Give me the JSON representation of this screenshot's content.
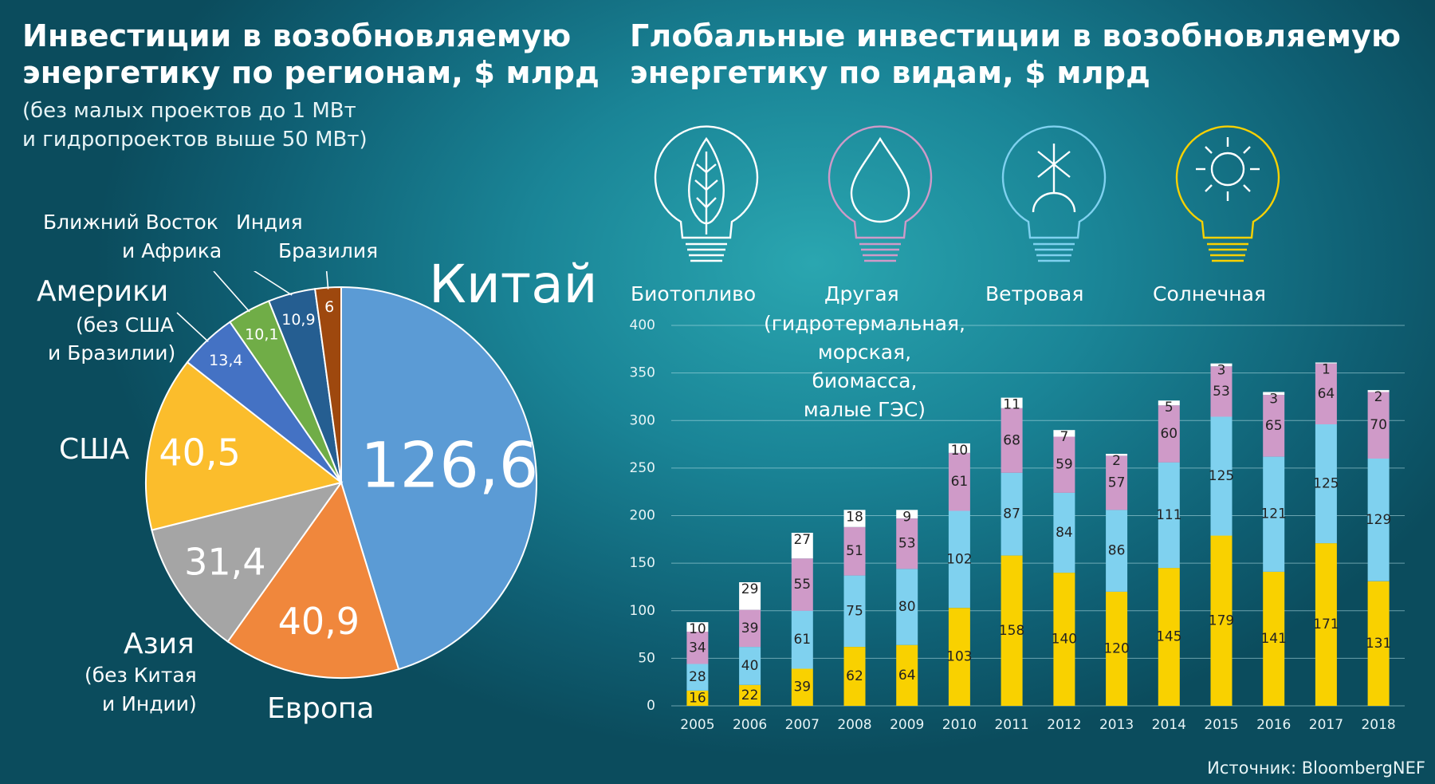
{
  "left": {
    "title": "Инвестиции в возобновляемую энергетику по регионам, $ млрд",
    "subtitle_line1": "(без малых проектов до 1 МВт",
    "subtitle_line2": "и гидропроектов выше 50 МВт)"
  },
  "right": {
    "title_line1": "Глобальные инвестиции в возобновляемую",
    "title_line2": "энергетику по видам, $ млрд"
  },
  "left_title_line1": "Инвестиции в возобновляемую",
  "left_title_line2": "энергетику по регионам, $ млрд",
  "region_labels": {
    "china": "Китай",
    "europe": "Европа",
    "asia": "Азия",
    "asia_note1": "(без Китая",
    "asia_note2": "и Индии)",
    "usa": "США",
    "americas": "Америки",
    "americas_note1": "(без США",
    "americas_note2": "и Бразилии)",
    "mea1": "Ближний Восток",
    "mea2": "и Африка",
    "india": "Индия",
    "brazil": "Бразилия"
  },
  "icons": {
    "bio": "Биотопливо",
    "other": "Другая",
    "other_note1": "(гидротермальная,",
    "other_note2": "морская,",
    "other_note3": "биомасса,",
    "other_note4": "малые ГЭС)",
    "wind": "Ветровая",
    "solar": "Солнечная"
  },
  "colors": {
    "solar": "#f9d100",
    "wind": "#7fd1ef",
    "other": "#cf9ac8",
    "bio": "#ffffff"
  },
  "source": "Источник: BloombergNEF",
  "chart_data": [
    {
      "type": "pie",
      "title": "Инвестиции в возобновляемую энергетику по регионам, $ млрд",
      "subtitle": "(без малых проектов до 1 МВт и гидропроектов выше 50 МВт)",
      "slices": [
        {
          "name": "Китай",
          "value": 126.6,
          "label": "126,6",
          "color": "#5b9bd5"
        },
        {
          "name": "Европа",
          "value": 40.9,
          "label": "40,9",
          "color": "#f0873c"
        },
        {
          "name": "Азия (без Китая и Индии)",
          "value": 31.4,
          "label": "31,4",
          "color": "#a5a5a5"
        },
        {
          "name": "США",
          "value": 40.5,
          "label": "40,5",
          "color": "#fbbd2c"
        },
        {
          "name": "Америки (без США и Бразилии)",
          "value": 13.4,
          "label": "13,4",
          "color": "#4472c4"
        },
        {
          "name": "Ближний Восток и Африка",
          "value": 10.1,
          "label": "10,1",
          "color": "#70ad47"
        },
        {
          "name": "Индия",
          "value": 10.9,
          "label": "10,9",
          "color": "#255e91"
        },
        {
          "name": "Бразилия",
          "value": 6,
          "label": "6",
          "color": "#9e480e"
        }
      ]
    },
    {
      "type": "bar",
      "stacked": true,
      "title": "Глобальные инвестиции в возобновляемую энергетику по видам, $ млрд",
      "categories": [
        "2005",
        "2006",
        "2007",
        "2008",
        "2009",
        "2010",
        "2011",
        "2012",
        "2013",
        "2014",
        "2015",
        "2016",
        "2017",
        "2018"
      ],
      "ylim": [
        0,
        400
      ],
      "yticks": [
        0,
        50,
        100,
        150,
        200,
        250,
        300,
        350,
        400
      ],
      "grid": true,
      "series": [
        {
          "name": "Солнечная",
          "color": "#f9d100",
          "values": [
            16,
            22,
            39,
            62,
            64,
            103,
            158,
            140,
            120,
            145,
            179,
            141,
            171,
            131
          ]
        },
        {
          "name": "Ветровая",
          "color": "#7fd1ef",
          "values": [
            28,
            40,
            61,
            75,
            80,
            102,
            87,
            84,
            86,
            111,
            125,
            121,
            125,
            129
          ]
        },
        {
          "name": "Другая (гидротермальная, морская, биомасса, малые ГЭС)",
          "color": "#cf9ac8",
          "values": [
            34,
            39,
            55,
            51,
            53,
            61,
            68,
            59,
            57,
            60,
            53,
            65,
            64,
            70
          ]
        },
        {
          "name": "Биотопливо",
          "color": "#ffffff",
          "values": [
            10,
            29,
            27,
            18,
            9,
            10,
            11,
            7,
            2,
            5,
            3,
            3,
            1,
            2
          ]
        }
      ]
    }
  ]
}
